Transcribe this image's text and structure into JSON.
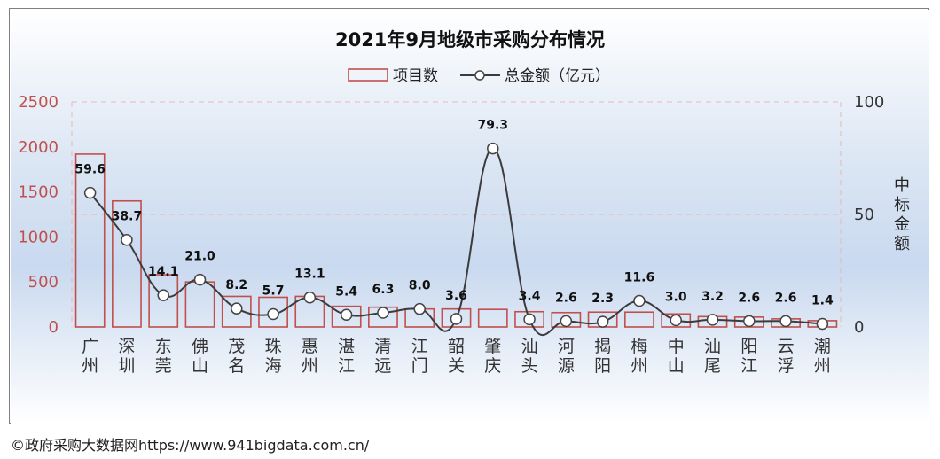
{
  "chart_data": {
    "type": "bar",
    "title": "2021年9月地级市采购分布情况",
    "categories": [
      "广州",
      "深圳",
      "东莞",
      "佛山",
      "茂名",
      "珠海",
      "惠州",
      "湛江",
      "清远",
      "江门",
      "韶关",
      "肇庆",
      "汕头",
      "河源",
      "揭阳",
      "梅州",
      "中山",
      "汕尾",
      "阳江",
      "云浮",
      "潮州"
    ],
    "series": [
      {
        "name": "项目数",
        "type": "bar",
        "axis": "left",
        "values": [
          1920,
          1400,
          580,
          500,
          340,
          330,
          340,
          230,
          220,
          200,
          200,
          195,
          170,
          160,
          165,
          165,
          145,
          115,
          110,
          90,
          70
        ]
      },
      {
        "name": "总金额（亿元）",
        "type": "line",
        "axis": "right",
        "values": [
          59.6,
          38.7,
          14.1,
          21.0,
          8.2,
          5.7,
          13.1,
          5.4,
          6.3,
          8.0,
          3.6,
          79.3,
          3.4,
          2.6,
          2.3,
          11.6,
          3.0,
          3.2,
          2.6,
          2.6,
          1.4
        ],
        "labels": [
          "59.6",
          "38.7",
          "14.1",
          "21.0",
          "8.2",
          "5.7",
          "13.1",
          "5.4",
          "6.3",
          "8.0",
          "3.6",
          "79.3",
          "3.4",
          "2.6",
          "2.3",
          "11.6",
          "3.0",
          "3.2",
          "2.6",
          "2.6",
          "1.4"
        ]
      }
    ],
    "y_left": {
      "ylim": [
        0,
        2500
      ],
      "ticks": [
        "0",
        "500",
        "1000",
        "1500",
        "2000",
        "2500"
      ]
    },
    "y_right": {
      "ylim": [
        0,
        100
      ],
      "ticks": [
        "0",
        "50",
        "100"
      ],
      "label": "中标金额"
    },
    "legend_position": "top-center",
    "colors": {
      "bar_edge": "#c0504d",
      "line": "#3b3b3b",
      "left_tick": "#c0504d",
      "background_band": "#c9d9ef"
    }
  },
  "footer": {
    "text": "©政府采购大数据网https://www.941bigdata.com.cn/"
  }
}
